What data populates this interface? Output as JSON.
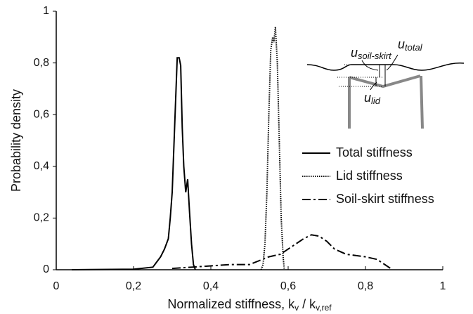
{
  "chart_data": {
    "type": "line",
    "ylabel": "Probability density",
    "xlabel": {
      "text": "Normalized stiffness, ",
      "terms": [
        {
          "symbol": "k",
          "subscript": "v"
        },
        {
          "symbol": "k",
          "subscript": "v,ref"
        }
      ],
      "separator": " / "
    },
    "xlim": [
      0,
      1
    ],
    "ylim": [
      0,
      1
    ],
    "xticks": [
      0,
      {
        "value": 0.2,
        "label": "0,2"
      },
      {
        "value": 0.4,
        "label": "0,4"
      },
      {
        "value": 0.6,
        "label": "0,6"
      },
      {
        "value": 0.8,
        "label": "0,8"
      },
      1
    ],
    "yticks": [
      0,
      {
        "value": 0.2,
        "label": "0,2"
      },
      {
        "value": 0.4,
        "label": "0,4"
      },
      {
        "value": 0.6,
        "label": "0,6"
      },
      {
        "value": 0.8,
        "label": "0,8"
      },
      1
    ],
    "grid": false,
    "legend": "right",
    "series": [
      {
        "name": "Total stiffness",
        "color": "#000000",
        "dash": "solid",
        "x": [
          0.04,
          0.2,
          0.25,
          0.27,
          0.28,
          0.29,
          0.295,
          0.3,
          0.305,
          0.31,
          0.313,
          0.318,
          0.322,
          0.326,
          0.33,
          0.335,
          0.34,
          0.345,
          0.35,
          0.355,
          0.36
        ],
        "values": [
          0,
          0.002,
          0.01,
          0.05,
          0.08,
          0.12,
          0.2,
          0.3,
          0.5,
          0.7,
          0.82,
          0.82,
          0.79,
          0.55,
          0.4,
          0.3,
          0.35,
          0.22,
          0.1,
          0.02,
          0
        ]
      },
      {
        "name": "Lid stiffness",
        "color": "#000000",
        "dash": "dotted",
        "x": [
          0.53,
          0.535,
          0.54,
          0.545,
          0.55,
          0.555,
          0.56,
          0.563,
          0.567,
          0.572,
          0.577,
          0.582,
          0.587,
          0.59
        ],
        "values": [
          0,
          0.02,
          0.1,
          0.3,
          0.6,
          0.85,
          0.9,
          0.88,
          0.94,
          0.8,
          0.5,
          0.2,
          0.05,
          0
        ]
      },
      {
        "name": "Soil-skirt stiffness",
        "color": "#000000",
        "dash": "dashdot",
        "x": [
          0.3,
          0.35,
          0.4,
          0.45,
          0.5,
          0.55,
          0.58,
          0.6,
          0.62,
          0.64,
          0.66,
          0.68,
          0.7,
          0.72,
          0.75,
          0.8,
          0.83,
          0.85,
          0.87
        ],
        "values": [
          0.005,
          0.01,
          0.015,
          0.02,
          0.02,
          0.05,
          0.06,
          0.08,
          0.1,
          0.12,
          0.135,
          0.13,
          0.11,
          0.08,
          0.06,
          0.05,
          0.04,
          0.02,
          0
        ]
      }
    ],
    "inset_labels": [
      {
        "symbol": "u",
        "subscript": "soil-skirt"
      },
      {
        "symbol": "u",
        "subscript": "total"
      },
      {
        "symbol": "u",
        "subscript": "lid"
      }
    ]
  }
}
